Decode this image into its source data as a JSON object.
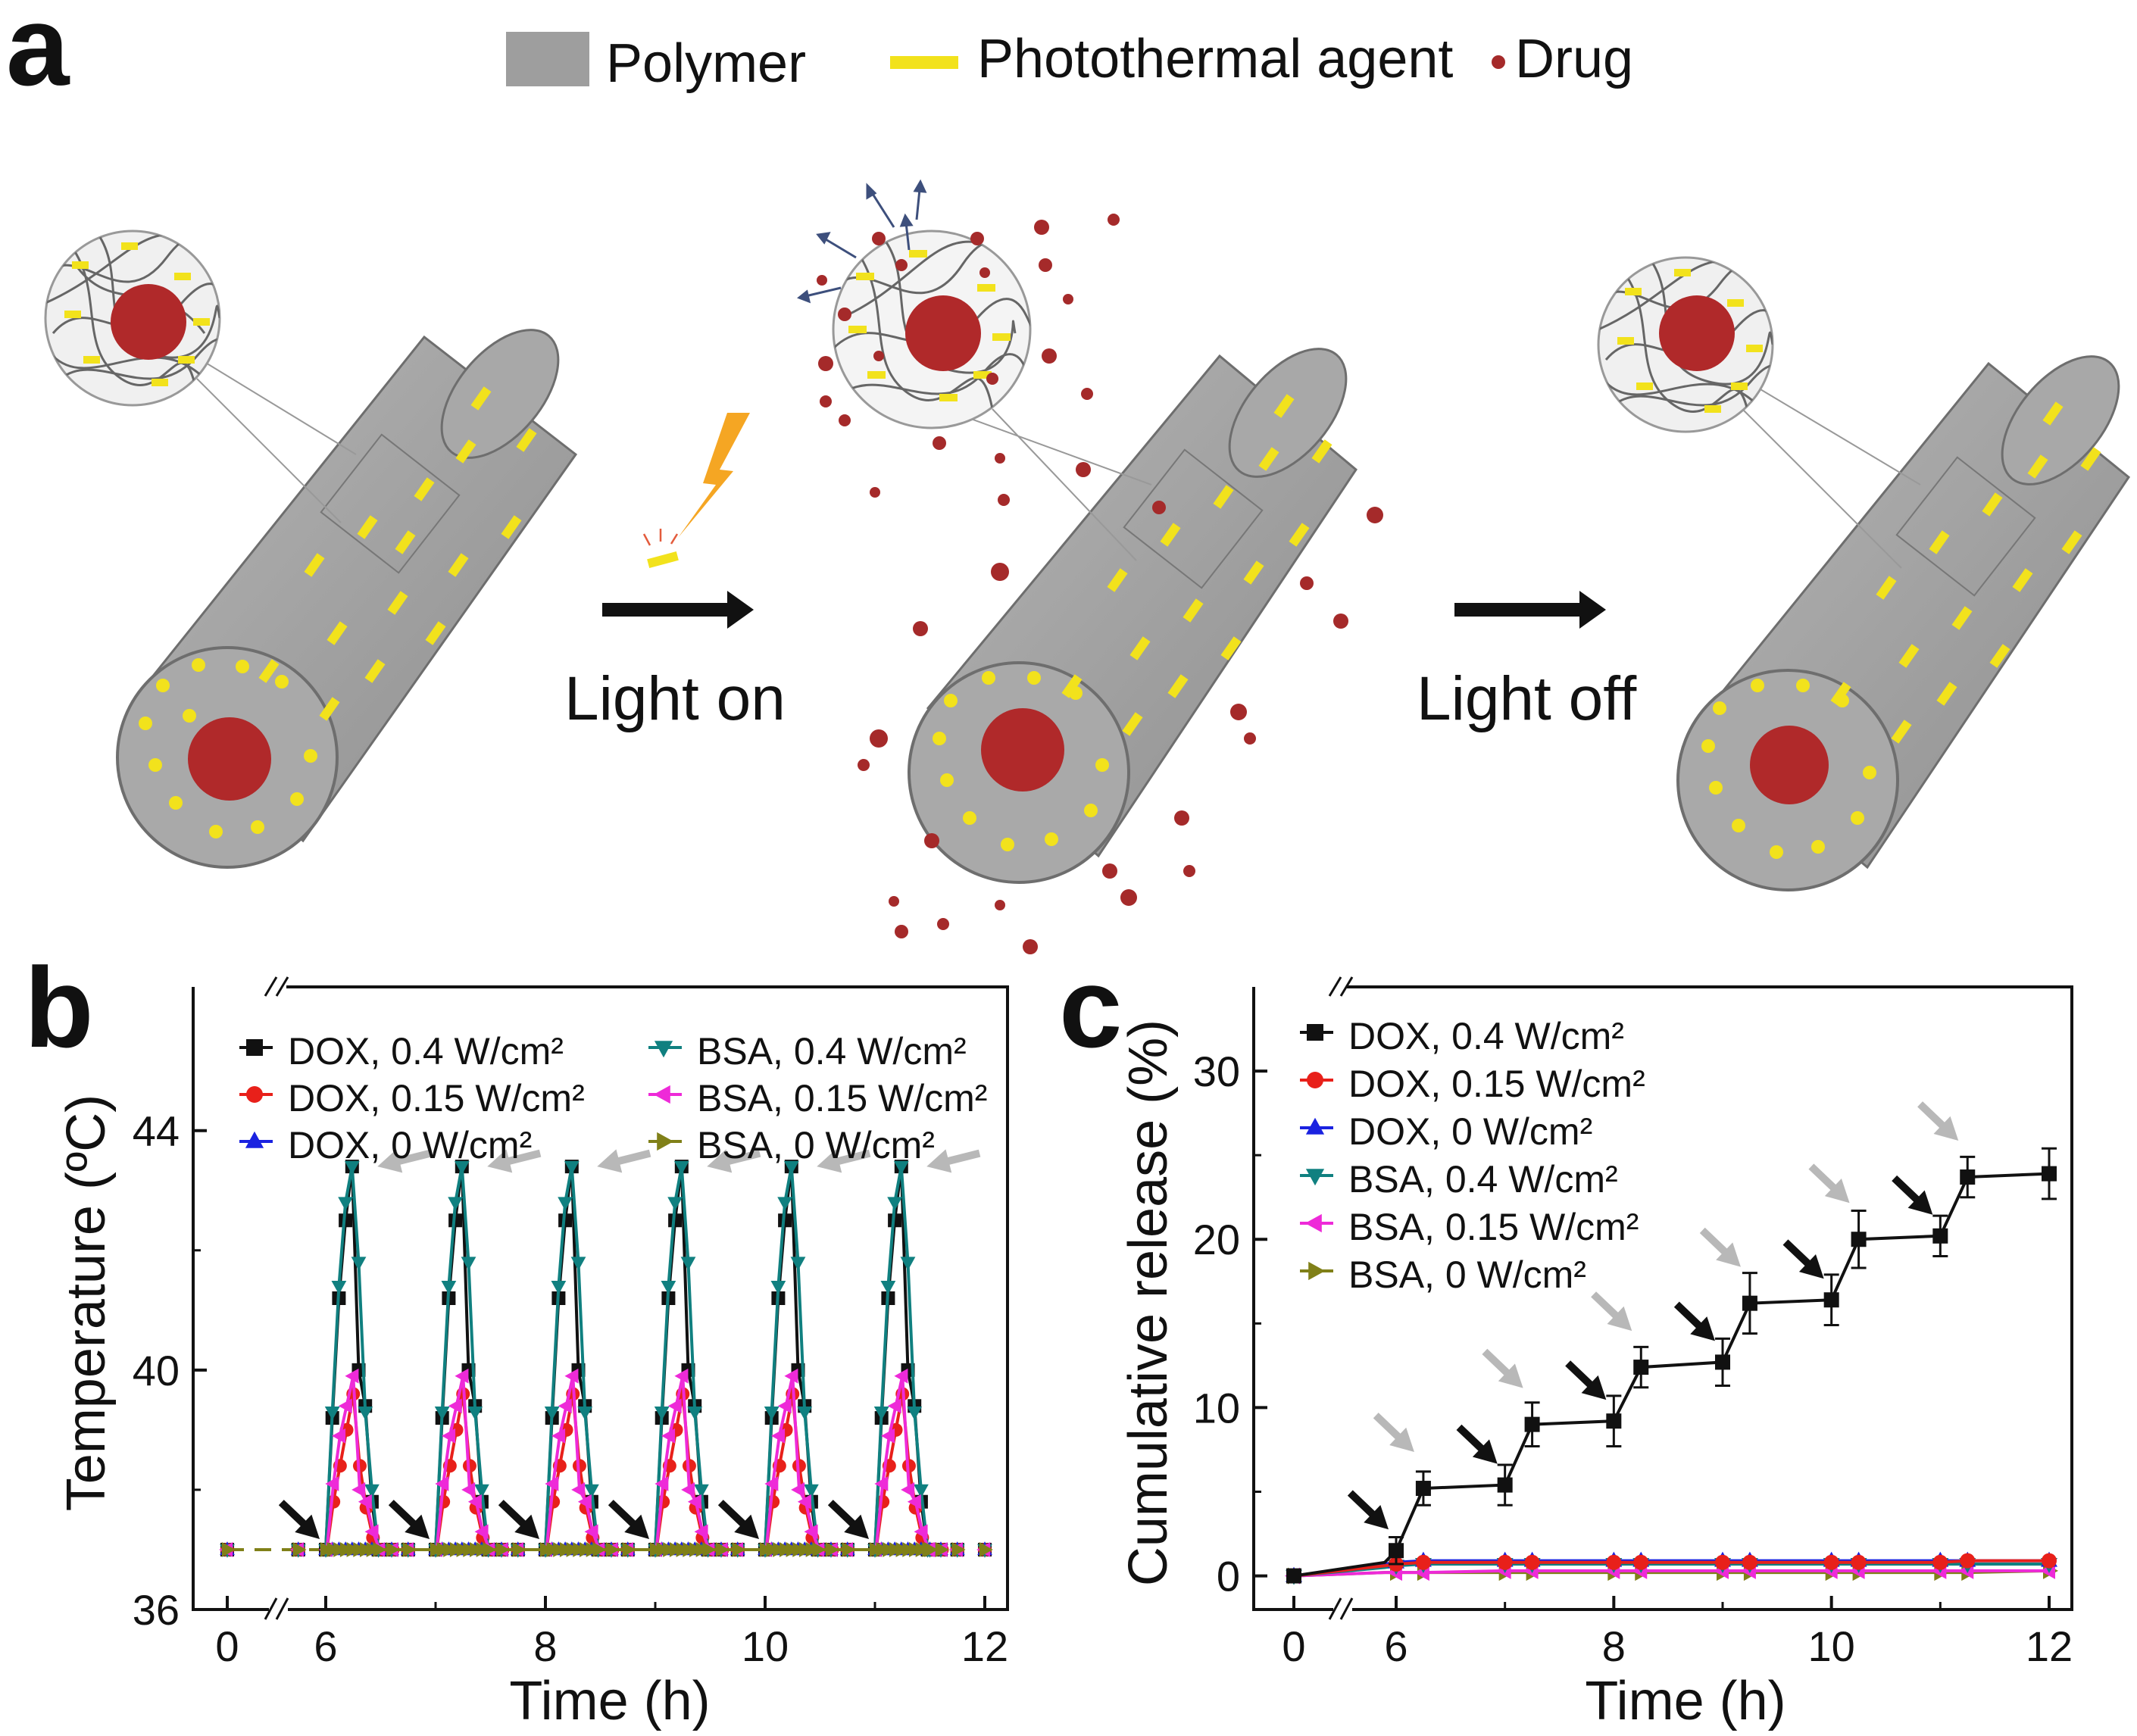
{
  "panel_labels": {
    "a": "a",
    "b": "b",
    "c": "c"
  },
  "legend_a": {
    "polymer": "Polymer",
    "photothermal_agent": "Photothermal agent",
    "drug": "Drug"
  },
  "process": {
    "light_on": "Light on",
    "light_off": "Light off"
  },
  "colors": {
    "polymer": "#9e9e9e",
    "agent": "#f2e21c",
    "drug": "#a52a2a",
    "dox_04": "#111111",
    "dox_015": "#e8201a",
    "dox_0": "#1a22e0",
    "bsa_04": "#108080",
    "bsa_015": "#ee2ad8",
    "bsa_0": "#808018",
    "gray_arrow": "#b8b8b8"
  },
  "chart_data": [
    {
      "type": "line",
      "panel": "b",
      "xlabel": "Time (h)",
      "ylabel": "Temperature (ºC)",
      "xlim": [
        0,
        12
      ],
      "ylim": [
        36,
        46
      ],
      "x_break_after": 0,
      "xticks": [
        "0",
        "6",
        "8",
        "10",
        "12"
      ],
      "yticks": [
        "36",
        "40",
        "44"
      ],
      "legend": [
        "DOX, 0.4 W/cm²",
        "DOX, 0.15 W/cm²",
        "DOX, 0 W/cm²",
        "BSA, 0.4 W/cm²",
        "BSA, 0.15 W/cm²",
        "BSA, 0 W/cm²"
      ],
      "pulse_starts": [
        6,
        7,
        8,
        9,
        10,
        11
      ],
      "pulse_profile_offsets_h": [
        0,
        0.05,
        0.1,
        0.15,
        0.2,
        0.25,
        0.3,
        0.35,
        0.4,
        0.5
      ],
      "series": [
        {
          "name": "DOX, 0.4 W/cm²",
          "key": "dox_04",
          "peak_profile": [
            37,
            39.2,
            41.2,
            42.5,
            43.4,
            40.0,
            39.4,
            37.8,
            37,
            37
          ]
        },
        {
          "name": "DOX, 0.15 W/cm²",
          "key": "dox_015",
          "peak_profile": [
            37,
            37.8,
            38.4,
            39.0,
            39.6,
            38.4,
            37.7,
            37.2,
            37,
            37
          ]
        },
        {
          "name": "DOX, 0 W/cm²",
          "key": "dox_0",
          "peak_profile": [
            37,
            37,
            37,
            37,
            37,
            37,
            37,
            37,
            37,
            37
          ]
        },
        {
          "name": "BSA, 0.4 W/cm²",
          "key": "bsa_04",
          "peak_profile": [
            37,
            39.3,
            41.4,
            42.8,
            43.4,
            41.8,
            39.3,
            38.0,
            37,
            37
          ]
        },
        {
          "name": "BSA, 0.15 W/cm²",
          "key": "bsa_015",
          "peak_profile": [
            37,
            38.1,
            38.9,
            39.4,
            39.9,
            38.0,
            37.8,
            37.3,
            37,
            37
          ]
        },
        {
          "name": "BSA, 0 W/cm²",
          "key": "bsa_0",
          "peak_profile": [
            37,
            37,
            37,
            37,
            37,
            37,
            37,
            37,
            37,
            37
          ]
        }
      ],
      "baseline_x": [
        0,
        3,
        4.5
      ],
      "baseline_y": 37,
      "baseline_off_x": [
        5.75,
        6.75,
        7.75,
        8.75,
        9.75,
        10.75,
        11.5,
        11.75,
        12
      ],
      "black_arrows_at_h": [
        6,
        7,
        8,
        9,
        10,
        11
      ],
      "gray_arrows_at_h": [
        6.25,
        7.25,
        8.25,
        9.25,
        10.25,
        11.25
      ]
    },
    {
      "type": "line",
      "panel": "c",
      "xlabel": "Time (h)",
      "ylabel": "Cumulative release (%)",
      "xlim": [
        0,
        12
      ],
      "ylim": [
        -2,
        35
      ],
      "x_break_after": 0,
      "xticks": [
        "0",
        "6",
        "8",
        "10",
        "12"
      ],
      "yticks": [
        "0",
        "10",
        "20",
        "30"
      ],
      "legend": [
        "DOX, 0.4 W/cm²",
        "DOX, 0.15 W/cm²",
        "DOX, 0 W/cm²",
        "BSA, 0.4 W/cm²",
        "BSA, 0.15 W/cm²",
        "BSA, 0 W/cm²"
      ],
      "series": [
        {
          "name": "DOX, 0.4 W/cm²",
          "key": "dox_04",
          "x": [
            0,
            5,
            6,
            6.25,
            7,
            7.25,
            8,
            8.25,
            9,
            9.25,
            10,
            10.25,
            11,
            11.25,
            12
          ],
          "y": [
            0,
            0.8,
            1.5,
            5.2,
            5.4,
            9.0,
            9.2,
            12.4,
            12.7,
            16.2,
            16.4,
            20.0,
            20.2,
            23.7,
            23.9
          ],
          "err": [
            0,
            0,
            0.8,
            1.0,
            1.2,
            1.3,
            1.5,
            1.2,
            1.4,
            1.8,
            1.5,
            1.7,
            1.2,
            1.2,
            1.5
          ]
        },
        {
          "name": "DOX, 0.15 W/cm²",
          "key": "dox_015",
          "x": [
            0,
            5,
            6,
            6.25,
            7,
            7.25,
            8,
            8.25,
            9,
            9.25,
            10,
            10.25,
            11,
            11.25,
            12
          ],
          "y": [
            0,
            0.6,
            0.7,
            0.8,
            0.8,
            0.8,
            0.8,
            0.8,
            0.8,
            0.8,
            0.8,
            0.8,
            0.8,
            0.9,
            0.9
          ]
        },
        {
          "name": "DOX, 0 W/cm²",
          "key": "dox_0",
          "x": [
            0,
            5,
            6,
            6.25,
            7,
            7.25,
            8,
            8.25,
            9,
            9.25,
            10,
            10.25,
            11,
            11.25,
            12
          ],
          "y": [
            0,
            0.7,
            0.8,
            0.9,
            0.9,
            0.9,
            0.9,
            0.9,
            0.9,
            0.9,
            0.9,
            0.9,
            0.9,
            0.9,
            0.9
          ]
        },
        {
          "name": "BSA, 0.4 W/cm²",
          "key": "bsa_04",
          "x": [
            0,
            5,
            6,
            6.25,
            7,
            7.25,
            8,
            8.25,
            9,
            9.25,
            10,
            10.25,
            11,
            11.25,
            12
          ],
          "y": [
            0,
            0.5,
            0.6,
            0.7,
            0.7,
            0.7,
            0.7,
            0.7,
            0.7,
            0.7,
            0.7,
            0.7,
            0.7,
            0.7,
            0.7
          ]
        },
        {
          "name": "BSA, 0.15 W/cm²",
          "key": "bsa_015",
          "x": [
            0,
            5,
            6,
            6.25,
            7,
            7.25,
            8,
            8.25,
            9,
            9.25,
            10,
            10.25,
            11,
            11.25,
            12
          ],
          "y": [
            0,
            0.2,
            0.2,
            0.2,
            0.3,
            0.3,
            0.3,
            0.3,
            0.3,
            0.3,
            0.3,
            0.3,
            0.3,
            0.3,
            0.3
          ]
        },
        {
          "name": "BSA, 0 W/cm²",
          "key": "bsa_0",
          "x": [
            0,
            5,
            6,
            6.25,
            7,
            7.25,
            8,
            8.25,
            9,
            9.25,
            10,
            10.25,
            11,
            11.25,
            12
          ],
          "y": [
            0,
            0.2,
            0.2,
            0.2,
            0.2,
            0.2,
            0.2,
            0.2,
            0.2,
            0.2,
            0.2,
            0.2,
            0.2,
            0.2,
            0.3
          ]
        }
      ],
      "black_arrows_at_h": [
        6,
        7,
        8,
        9,
        10,
        11
      ],
      "gray_arrows_at_h": [
        6.25,
        7.25,
        8.25,
        9.25,
        10.25,
        11.25
      ]
    }
  ]
}
